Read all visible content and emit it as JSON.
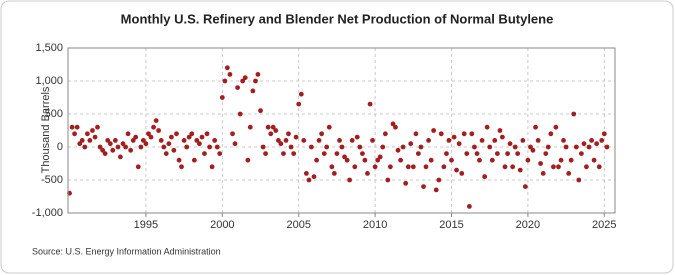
{
  "chart_data": {
    "type": "scatter",
    "title": "Monthly U.S. Refinery and Blender Net Production of Normal Butylene",
    "y_label": "Thousand Barrels",
    "source": "Source: U.S. Energy Information Administration",
    "color": "#a31f1f",
    "grid": true,
    "xlim": [
      1989.9,
      2025.7
    ],
    "ylim": [
      -1000,
      1500
    ],
    "xticks": [
      1995,
      2000,
      2005,
      2010,
      2015,
      2020,
      2025
    ],
    "yticks": [
      {
        "value": 1500,
        "label": "1,500"
      },
      {
        "value": 1000,
        "label": "1,000"
      },
      500,
      0,
      -500,
      {
        "value": -1000,
        "label": "-1,000"
      }
    ],
    "x": [
      1990,
      1990.17,
      1990.33,
      1990.5,
      1990.67,
      1990.83,
      1991,
      1991.17,
      1991.33,
      1991.5,
      1991.67,
      1991.83,
      1992,
      1992.17,
      1992.33,
      1992.5,
      1992.67,
      1992.83,
      1993,
      1993.17,
      1993.33,
      1993.5,
      1993.67,
      1993.83,
      1994,
      1994.17,
      1994.33,
      1994.5,
      1994.67,
      1994.83,
      1995,
      1995.17,
      1995.33,
      1995.5,
      1995.67,
      1995.83,
      1996,
      1996.17,
      1996.33,
      1996.5,
      1996.67,
      1996.83,
      1997,
      1997.17,
      1997.33,
      1997.5,
      1997.67,
      1997.83,
      1998,
      1998.17,
      1998.33,
      1998.5,
      1998.67,
      1998.83,
      1999,
      1999.17,
      1999.33,
      1999.5,
      1999.67,
      1999.83,
      2000,
      2000.17,
      2000.33,
      2000.5,
      2000.67,
      2000.83,
      2001,
      2001.17,
      2001.33,
      2001.5,
      2001.67,
      2001.83,
      2002,
      2002.17,
      2002.33,
      2002.5,
      2002.67,
      2002.83,
      2003,
      2003.17,
      2003.33,
      2003.5,
      2003.67,
      2003.83,
      2004,
      2004.17,
      2004.33,
      2004.5,
      2004.67,
      2004.83,
      2005,
      2005.17,
      2005.33,
      2005.5,
      2005.67,
      2005.83,
      2006,
      2006.17,
      2006.33,
      2006.5,
      2006.67,
      2006.83,
      2007,
      2007.17,
      2007.33,
      2007.5,
      2007.67,
      2007.83,
      2008,
      2008.17,
      2008.33,
      2008.5,
      2008.67,
      2008.83,
      2009,
      2009.17,
      2009.33,
      2009.5,
      2009.67,
      2009.83,
      2010,
      2010.17,
      2010.33,
      2010.5,
      2010.67,
      2010.83,
      2011,
      2011.17,
      2011.33,
      2011.5,
      2011.67,
      2011.83,
      2012,
      2012.17,
      2012.33,
      2012.5,
      2012.67,
      2012.83,
      2013,
      2013.17,
      2013.33,
      2013.5,
      2013.67,
      2013.83,
      2014,
      2014.17,
      2014.33,
      2014.5,
      2014.67,
      2014.83,
      2015,
      2015.17,
      2015.33,
      2015.5,
      2015.67,
      2015.83,
      2016,
      2016.17,
      2016.33,
      2016.5,
      2016.67,
      2016.83,
      2017,
      2017.17,
      2017.33,
      2017.5,
      2017.67,
      2017.83,
      2018,
      2018.17,
      2018.33,
      2018.5,
      2018.67,
      2018.83,
      2019,
      2019.17,
      2019.33,
      2019.5,
      2019.67,
      2019.83,
      2020,
      2020.17,
      2020.33,
      2020.5,
      2020.67,
      2020.83,
      2021,
      2021.17,
      2021.33,
      2021.5,
      2021.67,
      2021.83,
      2022,
      2022.17,
      2022.33,
      2022.5,
      2022.67,
      2022.83,
      2023,
      2023.17,
      2023.33,
      2023.5,
      2023.67,
      2023.83,
      2024,
      2024.17,
      2024.33,
      2024.5,
      2024.67,
      2024.83,
      2025,
      2025.17
    ],
    "values": [
      -700,
      300,
      200,
      300,
      50,
      100,
      0,
      200,
      100,
      250,
      150,
      300,
      0,
      -50,
      -100,
      100,
      50,
      -50,
      100,
      0,
      -150,
      50,
      0,
      200,
      -50,
      100,
      150,
      -300,
      0,
      100,
      50,
      200,
      150,
      300,
      400,
      250,
      100,
      0,
      -100,
      50,
      150,
      -50,
      200,
      -200,
      -300,
      100,
      0,
      150,
      200,
      -200,
      100,
      50,
      150,
      -100,
      200,
      0,
      -300,
      100,
      0,
      -100,
      750,
      1000,
      1200,
      1100,
      200,
      50,
      900,
      500,
      1000,
      1050,
      -200,
      300,
      850,
      1000,
      1100,
      550,
      0,
      -100,
      300,
      200,
      300,
      250,
      100,
      50,
      -100,
      100,
      200,
      0,
      -100,
      150,
      650,
      800,
      100,
      -400,
      -500,
      0,
      -450,
      -200,
      100,
      200,
      -100,
      0,
      300,
      -300,
      -400,
      -100,
      100,
      0,
      -150,
      -200,
      -500,
      100,
      -300,
      150,
      0,
      -100,
      -200,
      -400,
      650,
      100,
      -300,
      -200,
      -150,
      0,
      200,
      -500,
      -300,
      350,
      300,
      -50,
      -200,
      0,
      -550,
      -300,
      50,
      -300,
      200,
      -100,
      0,
      -600,
      -300,
      100,
      -200,
      250,
      -650,
      -500,
      200,
      -300,
      -100,
      100,
      -200,
      150,
      -350,
      50,
      -400,
      200,
      -100,
      -900,
      200,
      0,
      -100,
      -200,
      100,
      -450,
      300,
      0,
      -200,
      100,
      -100,
      250,
      150,
      -300,
      -100,
      50,
      -300,
      0,
      -100,
      -350,
      100,
      -600,
      -200,
      0,
      -50,
      300,
      100,
      -250,
      -400,
      -100,
      0,
      200,
      -300,
      300,
      -300,
      -200,
      100,
      0,
      -400,
      -200,
      500,
      0,
      -500,
      -100,
      50,
      -300,
      0,
      100,
      -200,
      50,
      -300,
      100,
      200,
      0
    ]
  }
}
